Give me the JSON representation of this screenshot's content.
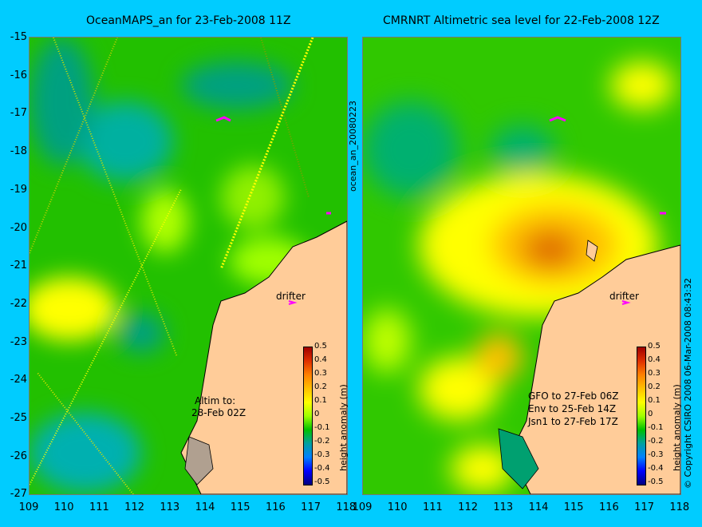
{
  "left_panel": {
    "title": "OceanMAPS_an for 23-Feb-2008 11Z",
    "annotation_lines": [
      "Altim to:",
      "28-Feb 02Z"
    ],
    "drifter_label": "drifter"
  },
  "right_panel": {
    "title": "CMRNRT Altimetric sea level  for 22-Feb-2008 12Z",
    "annotation_lines": [
      "GFO to 27-Feb 06Z",
      "Env to 25-Feb 14Z",
      "Jsn1 to 27-Feb 17Z"
    ],
    "drifter_label": "drifter"
  },
  "side_label": "ocean_an_20080223",
  "copyright": "© Copyright CSIRO 2008   06-Mar-2008 08:43:32",
  "colorbar": {
    "title": "height anomaly (m)",
    "ticks": [
      "0.5",
      "0.4",
      "0.3",
      "0.2",
      "0.1",
      "0",
      "-0.1",
      "-0.2",
      "-0.3",
      "-0.4",
      "-0.5"
    ],
    "colors": [
      "#a00000",
      "#e03000",
      "#ff8000",
      "#ffc000",
      "#ffff00",
      "#a0ff00",
      "#00c000",
      "#00a0a0",
      "#0080ff",
      "#0000ff",
      "#000080"
    ]
  },
  "axes": {
    "lat_ticks": [
      "-15",
      "-16",
      "-17",
      "-18",
      "-19",
      "-20",
      "-21",
      "-22",
      "-23",
      "-24",
      "-25",
      "-26",
      "-27"
    ],
    "lon_ticks": [
      "109",
      "110",
      "111",
      "112",
      "113",
      "114",
      "115",
      "116",
      "117",
      "118"
    ]
  },
  "colors": {
    "background": "#00ccff",
    "land": "#ffcc99"
  }
}
